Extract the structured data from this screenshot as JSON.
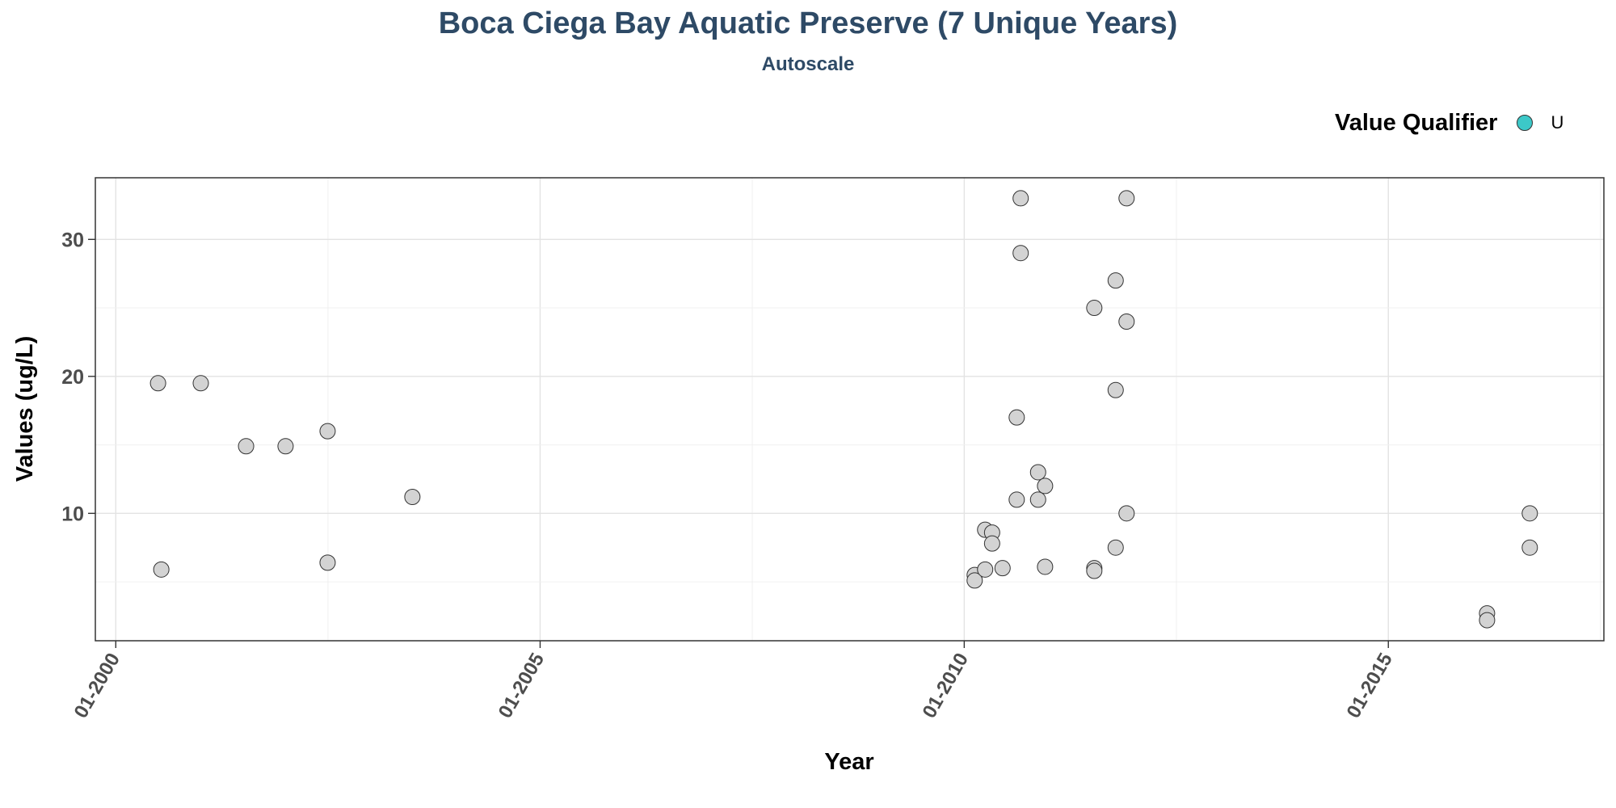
{
  "chart_data": {
    "type": "scatter",
    "title": "Boca Ciega Bay Aquatic Preserve (7 Unique Years)",
    "subtitle": "Autoscale",
    "xlabel": "Year",
    "ylabel": "Values (ug/L)",
    "x_ticks": [
      {
        "date": "2000-01",
        "label": "01-2000"
      },
      {
        "date": "2005-01",
        "label": "01-2005"
      },
      {
        "date": "2010-01",
        "label": "01-2010"
      },
      {
        "date": "2015-01",
        "label": "01-2015"
      }
    ],
    "xlim": [
      "1999-10-05",
      "2017-07-17"
    ],
    "y_ticks": [
      10,
      20,
      30
    ],
    "ylim": [
      0.7,
      34.5
    ],
    "grid": true,
    "legend": {
      "title": "Value Qualifier",
      "placement": "top-right",
      "entries": [
        {
          "label": "U",
          "color": "#3cc8c8"
        }
      ]
    },
    "point_color": "#d3d3d3",
    "points": [
      {
        "x": "2000-07-01",
        "y": 19.5
      },
      {
        "x": "2000-07-15",
        "y": 5.9
      },
      {
        "x": "2001-01-01",
        "y": 19.5
      },
      {
        "x": "2001-07-15",
        "y": 14.9
      },
      {
        "x": "2002-01-01",
        "y": 14.9
      },
      {
        "x": "2002-07-01",
        "y": 16.0
      },
      {
        "x": "2002-07-01",
        "y": 6.4
      },
      {
        "x": "2003-07-01",
        "y": 11.2
      },
      {
        "x": "2010-02-15",
        "y": 5.5
      },
      {
        "x": "2010-02-15",
        "y": 5.1
      },
      {
        "x": "2010-04-01",
        "y": 8.8
      },
      {
        "x": "2010-04-01",
        "y": 5.9
      },
      {
        "x": "2010-05-01",
        "y": 8.6
      },
      {
        "x": "2010-05-01",
        "y": 7.8
      },
      {
        "x": "2010-06-15",
        "y": 6.0
      },
      {
        "x": "2010-08-15",
        "y": 17.0
      },
      {
        "x": "2010-08-15",
        "y": 11.0
      },
      {
        "x": "2010-09-01",
        "y": 33.0
      },
      {
        "x": "2010-09-01",
        "y": 29.0
      },
      {
        "x": "2010-11-15",
        "y": 13.0
      },
      {
        "x": "2010-11-15",
        "y": 11.0
      },
      {
        "x": "2010-12-15",
        "y": 12.0
      },
      {
        "x": "2010-12-15",
        "y": 6.1
      },
      {
        "x": "2011-07-15",
        "y": 25.0
      },
      {
        "x": "2011-07-15",
        "y": 6.0
      },
      {
        "x": "2011-07-15",
        "y": 5.8
      },
      {
        "x": "2011-10-15",
        "y": 27.0
      },
      {
        "x": "2011-10-15",
        "y": 19.0
      },
      {
        "x": "2011-10-15",
        "y": 7.5
      },
      {
        "x": "2011-12-01",
        "y": 33.0
      },
      {
        "x": "2011-12-01",
        "y": 24.0
      },
      {
        "x": "2011-12-01",
        "y": 10.0
      },
      {
        "x": "2016-03-01",
        "y": 2.7
      },
      {
        "x": "2016-03-01",
        "y": 2.2
      },
      {
        "x": "2016-09-01",
        "y": 10.0
      },
      {
        "x": "2016-09-01",
        "y": 7.5
      }
    ]
  }
}
